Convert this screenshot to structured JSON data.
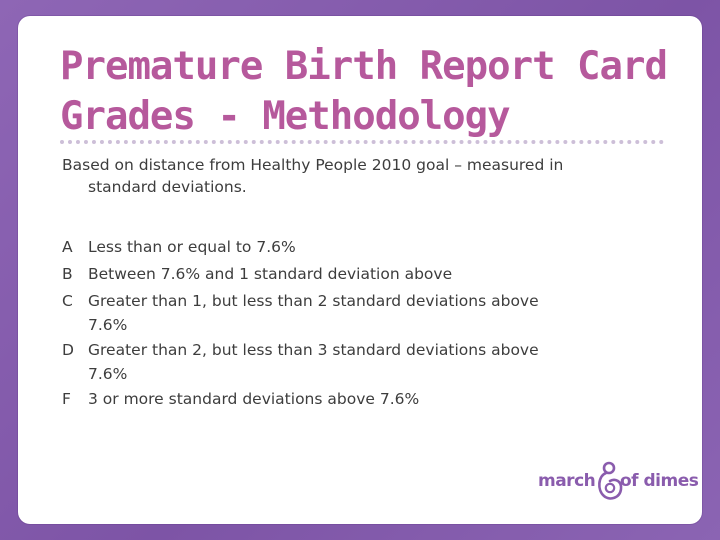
{
  "slide": {
    "title_line1": "Premature Birth Report Card",
    "title_line2": "Grades - Methodology",
    "intro_line1": "Based on distance from Healthy People 2010 goal – measured in",
    "intro_line2": "standard deviations.",
    "grades": [
      {
        "letter": "A",
        "text": "Less than or equal to 7.6%",
        "cont": ""
      },
      {
        "letter": "B",
        "text": "Between 7.6% and 1 standard deviation above",
        "cont": ""
      },
      {
        "letter": "C",
        "text": "Greater than 1, but less than 2 standard deviations above",
        "cont": "7.6%"
      },
      {
        "letter": "D",
        "text": "Greater than 2, but less than 3 standard deviations above",
        "cont": "7.6%"
      },
      {
        "letter": "F",
        "text": "3 or more standard deviations above 7.6%",
        "cont": ""
      }
    ]
  },
  "logo": {
    "word_left": "march",
    "word_right": "of dimes",
    "mark_icon": "mother-and-child-icon"
  },
  "colors": {
    "background": "#8a62b0",
    "title": "#b6599c",
    "body_text": "#3d3d3d",
    "logo": "#8a5cad",
    "rule": "#cdbfd8"
  }
}
